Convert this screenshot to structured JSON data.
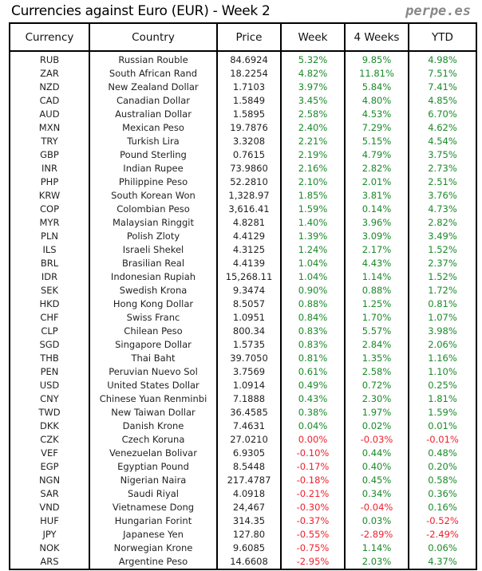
{
  "title": "Currencies against Euro (EUR) - Week 2",
  "brand": "perpe.es",
  "colors": {
    "positive": "#1b8a2a",
    "negative": "#f0202e"
  },
  "columns": [
    "Currency",
    "Country",
    "Price",
    "Week",
    "4 Weeks",
    "YTD"
  ],
  "rows": [
    [
      "RUB",
      "Russian Rouble",
      "84.6924",
      "5.32%",
      "9.85%",
      "4.98%"
    ],
    [
      "ZAR",
      "South African Rand",
      "18.2254",
      "4.82%",
      "11.81%",
      "7.51%"
    ],
    [
      "NZD",
      "New Zealand Dollar",
      "1.7103",
      "3.97%",
      "5.84%",
      "7.41%"
    ],
    [
      "CAD",
      "Canadian Dollar",
      "1.5849",
      "3.45%",
      "4.80%",
      "4.85%"
    ],
    [
      "AUD",
      "Australian Dollar",
      "1.5895",
      "2.58%",
      "4.53%",
      "6.70%"
    ],
    [
      "MXN",
      "Mexican Peso",
      "19.7876",
      "2.40%",
      "7.29%",
      "4.62%"
    ],
    [
      "TRY",
      "Turkish Lira",
      "3.3208",
      "2.21%",
      "5.15%",
      "4.54%"
    ],
    [
      "GBP",
      "Pound Sterling",
      "0.7615",
      "2.19%",
      "4.79%",
      "3.75%"
    ],
    [
      "INR",
      "Indian Rupee",
      "73.9860",
      "2.16%",
      "2.82%",
      "2.73%"
    ],
    [
      "PHP",
      "Philippine Peso",
      "52.2810",
      "2.10%",
      "2.01%",
      "2.51%"
    ],
    [
      "KRW",
      "South Korean Won",
      "1,328.97",
      "1.85%",
      "3.81%",
      "3.76%"
    ],
    [
      "COP",
      "Colombian Peso",
      "3,616.41",
      "1.59%",
      "0.14%",
      "4.73%"
    ],
    [
      "MYR",
      "Malaysian Ringgit",
      "4.8281",
      "1.40%",
      "3.96%",
      "2.82%"
    ],
    [
      "PLN",
      "Polish Zloty",
      "4.4129",
      "1.39%",
      "3.09%",
      "3.49%"
    ],
    [
      "ILS",
      "Israeli Shekel",
      "4.3125",
      "1.24%",
      "2.17%",
      "1.52%"
    ],
    [
      "BRL",
      "Brasilian Real",
      "4.4139",
      "1.04%",
      "4.43%",
      "2.37%"
    ],
    [
      "IDR",
      "Indonesian Rupiah",
      "15,268.11",
      "1.04%",
      "1.14%",
      "1.52%"
    ],
    [
      "SEK",
      "Swedish Krona",
      "9.3474",
      "0.90%",
      "0.88%",
      "1.72%"
    ],
    [
      "HKD",
      "Hong Kong Dollar",
      "8.5057",
      "0.88%",
      "1.25%",
      "0.81%"
    ],
    [
      "CHF",
      "Swiss Franc",
      "1.0951",
      "0.84%",
      "1.70%",
      "1.07%"
    ],
    [
      "CLP",
      "Chilean Peso",
      "800.34",
      "0.83%",
      "5.57%",
      "3.98%"
    ],
    [
      "SGD",
      "Singapore Dollar",
      "1.5735",
      "0.83%",
      "2.84%",
      "2.06%"
    ],
    [
      "THB",
      "Thai Baht",
      "39.7050",
      "0.81%",
      "1.35%",
      "1.16%"
    ],
    [
      "PEN",
      "Peruvian Nuevo Sol",
      "3.7569",
      "0.61%",
      "2.58%",
      "1.10%"
    ],
    [
      "USD",
      "United States Dollar",
      "1.0914",
      "0.49%",
      "0.72%",
      "0.25%"
    ],
    [
      "CNY",
      "Chinese Yuan Renminbi",
      "7.1888",
      "0.43%",
      "2.30%",
      "1.81%"
    ],
    [
      "TWD",
      "New Taiwan Dollar",
      "36.4585",
      "0.38%",
      "1.97%",
      "1.59%"
    ],
    [
      "DKK",
      "Danish Krone",
      "7.4631",
      "0.04%",
      "0.02%",
      "0.01%"
    ],
    [
      "CZK",
      "Czech Koruna",
      "27.0210",
      "0.00%",
      "-0.03%",
      "-0.01%"
    ],
    [
      "VEF",
      "Venezuelan Bolivar",
      "6.9305",
      "-0.10%",
      "0.44%",
      "0.48%"
    ],
    [
      "EGP",
      "Egyptian Pound",
      "8.5448",
      "-0.17%",
      "0.40%",
      "0.20%"
    ],
    [
      "NGN",
      "Nigerian Naira",
      "217.4787",
      "-0.18%",
      "0.45%",
      "0.58%"
    ],
    [
      "SAR",
      "Saudi Riyal",
      "4.0918",
      "-0.21%",
      "0.34%",
      "0.36%"
    ],
    [
      "VND",
      "Vietnamese Dong",
      "24,467",
      "-0.30%",
      "-0.04%",
      "0.16%"
    ],
    [
      "HUF",
      "Hungarian Forint",
      "314.35",
      "-0.37%",
      "0.03%",
      "-0.52%"
    ],
    [
      "JPY",
      "Japanese Yen",
      "127.80",
      "-0.55%",
      "-2.89%",
      "-2.49%"
    ],
    [
      "NOK",
      "Norwegian Krone",
      "9.6085",
      "-0.75%",
      "1.14%",
      "0.06%"
    ],
    [
      "ARS",
      "Argentine Peso",
      "14.6608",
      "-2.95%",
      "2.03%",
      "4.37%"
    ]
  ]
}
